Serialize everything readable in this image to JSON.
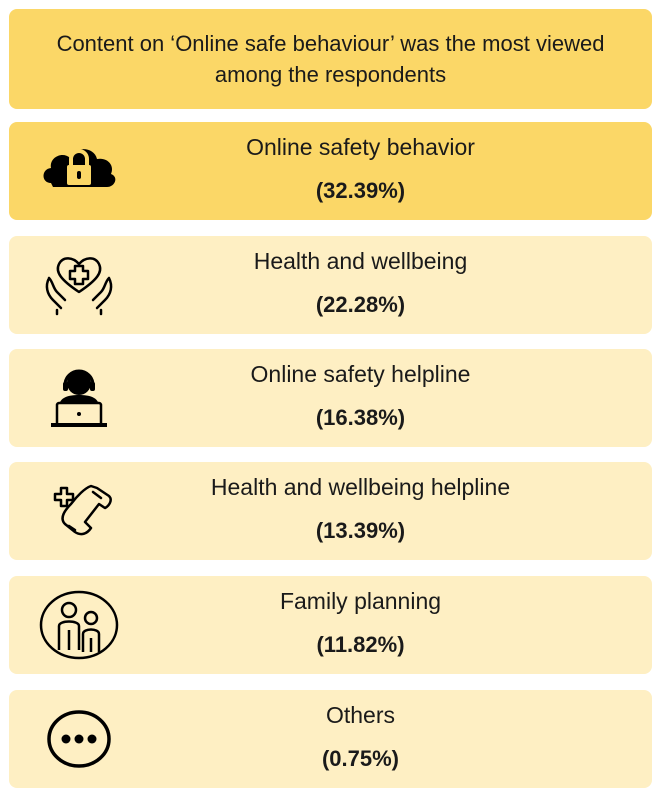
{
  "header": {
    "text": "Content on ‘Online safe behaviour’ was the most viewed among the respondents"
  },
  "items": [
    {
      "label": "Online safety behavior",
      "value": "(32.39%)",
      "icon": "cloud-lock-icon"
    },
    {
      "label": "Health and wellbeing",
      "value": "(22.28%)",
      "icon": "heart-hands-icon"
    },
    {
      "label": "Online safety helpline",
      "value": "(16.38%)",
      "icon": "support-agent-icon"
    },
    {
      "label": "Health and wellbeing helpline",
      "value": "(13.39%)",
      "icon": "medical-phone-icon"
    },
    {
      "label": "Family planning",
      "value": "(11.82%)",
      "icon": "family-icon"
    },
    {
      "label": "Others",
      "value": "(0.75%)",
      "icon": "more-dots-icon"
    }
  ],
  "colors": {
    "highlight": "#fbd767",
    "card": "#feefc3"
  }
}
